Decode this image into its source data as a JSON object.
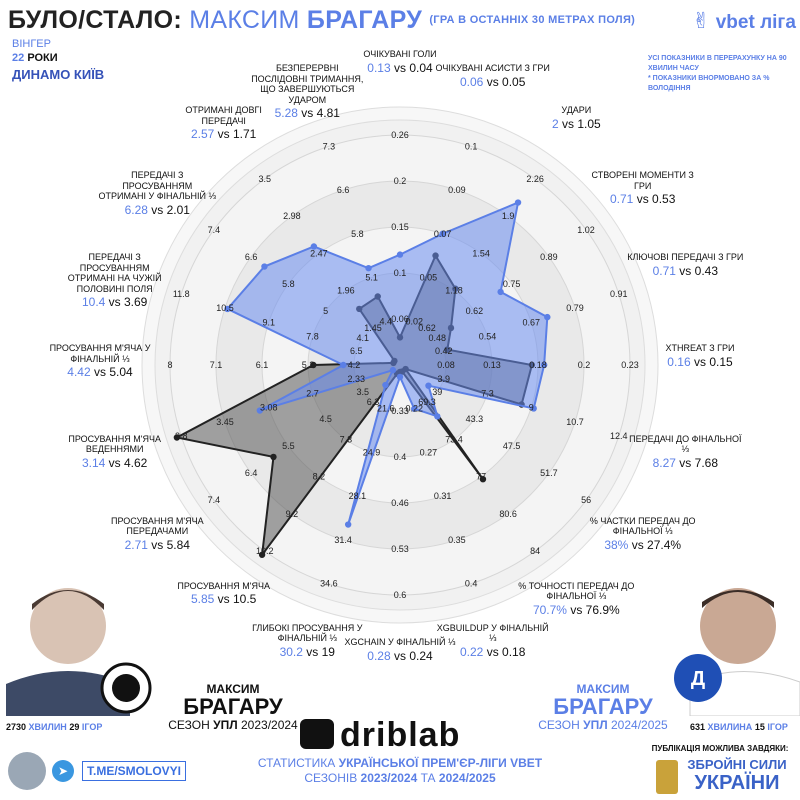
{
  "header": {
    "title_prefix": "БУЛО/СТАЛО:",
    "player_first": "МАКСИМ",
    "player_last": "БРАГАРУ",
    "title_note": "(ГРА В ОСТАННІХ 30 МЕТРАХ ПОЛЯ)",
    "nationality": "ВІНГЕР",
    "age_value": "22",
    "age_unit": "РОКИ",
    "club": "ДИНАМО КИЇВ",
    "league_logo": "vbet ліга",
    "note_line1": "УСІ ПОКАЗНИКИ В ПЕРЕРАХУНКУ НА 90 ХВИЛИН ЧАСУ",
    "note_line2": "* ПОКАЗНИКИ ВНОРМОВАНО ЗА % ВОЛОДІННЯ"
  },
  "chart_data": {
    "type": "radar",
    "series": [
      {
        "name": "СЕЗОН УПЛ 2024/2025",
        "color": "#6b8ef0"
      },
      {
        "name": "СЕЗОН УПЛ 2023/2024",
        "color": "#707070"
      }
    ],
    "metrics": [
      {
        "name": "ОЧІКУВАНІ ГОЛИ",
        "new": "0.13",
        "old": "0.04",
        "new_v": 0.13,
        "old_v": 0.04,
        "ticks": [
          "0.06",
          "0.1",
          "0.15",
          "0.2",
          "0.26"
        ]
      },
      {
        "name": "ОЧІКУВАНІ АСИСТИ З ГРИ",
        "new": "0.06",
        "old": "0.05",
        "new_v": 0.06,
        "old_v": 0.05,
        "ticks": [
          "0.02",
          "0.05",
          "0.07",
          "0.09",
          "0.1"
        ]
      },
      {
        "name": "УДАРИ",
        "new": "2",
        "old": "1.05",
        "new_v": 2,
        "old_v": 1.05,
        "ticks": [
          "0.62",
          "1.18",
          "1.54",
          "1.9",
          "2.26"
        ]
      },
      {
        "name": "СТВОРЕНІ МОМЕНТИ З ГРИ",
        "new": "0.71",
        "old": "0.53",
        "new_v": 0.71,
        "old_v": 0.53,
        "ticks": [
          "0.48",
          "0.62",
          "0.75",
          "0.89",
          "1.02"
        ]
      },
      {
        "name": "КЛЮЧОВІ ПЕРЕДАЧІ З ГРИ",
        "new": "0.71",
        "old": "0.43",
        "new_v": 0.71,
        "old_v": 0.43,
        "ticks": [
          "0.42",
          "0.54",
          "0.67",
          "0.79",
          "0.91"
        ]
      },
      {
        "name": "XTHREAT З ГРИ",
        "new": "0.16",
        "old": "0.15",
        "new_v": 0.16,
        "old_v": 0.15,
        "ticks": [
          "0.08",
          "0.13",
          "0.18",
          "0.2",
          "0.23"
        ]
      },
      {
        "name": "ПЕРЕДАЧІ ДО ФІНАЛЬНОЇ ⅓",
        "new": "8.27",
        "old": "7.68",
        "new_v": 8.27,
        "old_v": 7.68,
        "ticks": [
          "3.9",
          "7.3",
          "9",
          "10.7",
          "12.4"
        ]
      },
      {
        "name": "% ЧАСТКИ ПЕРЕДАЧ ДО ФІНАЛЬНОЇ ⅓",
        "new": "38%",
        "old": "27.4%",
        "new_v": 38,
        "old_v": 27.4,
        "ticks": [
          "39",
          "43.3",
          "47.5",
          "51.7",
          "56"
        ]
      },
      {
        "name": "% ТОЧНОСТІ ПЕРЕДАЧ ДО ФІНАЛЬНОЇ ⅓",
        "new": "70.7%",
        "old": "76.9%",
        "new_v": 70.7,
        "old_v": 76.9,
        "ticks": [
          "69.3",
          "73.4",
          "77",
          "80.6",
          "84"
        ]
      },
      {
        "name": "XGBUILDUP У ФІНАЛЬНІЙ ⅓",
        "new": "0.22",
        "old": "0.18",
        "new_v": 0.22,
        "old_v": 0.18,
        "ticks": [
          "0.22",
          "0.27",
          "0.31",
          "0.35",
          "0.4"
        ]
      },
      {
        "name": "XGCHAIN У ФІНАЛЬНІЙ ⅓",
        "new": "0.28",
        "old": "0.24",
        "new_v": 0.28,
        "old_v": 0.24,
        "ticks": [
          "0.33",
          "0.4",
          "0.46",
          "0.53",
          "0.6"
        ]
      },
      {
        "name": "ГЛИБОКІ ПРОСУВАННЯ У ФІНАЛЬНІЙ ⅓",
        "new": "30.2",
        "old": "19",
        "new_v": 30.2,
        "old_v": 19,
        "ticks": [
          "21.6",
          "24.9",
          "28.1",
          "31.4",
          "34.6"
        ]
      },
      {
        "name": "ПРОСУВАННЯ М'ЯЧА",
        "new": "5.85",
        "old": "10.5",
        "new_v": 5.85,
        "old_v": 10.5,
        "ticks": [
          "6.3",
          "7.3",
          "8.2",
          "9.2",
          "10.2"
        ]
      },
      {
        "name": "ПРОСУВАННЯ М'ЯЧА ПЕРЕДАЧАМИ",
        "new": "2.71",
        "old": "5.84",
        "new_v": 2.71,
        "old_v": 5.84,
        "ticks": [
          "3.5",
          "4.5",
          "5.5",
          "6.4",
          "7.4"
        ]
      },
      {
        "name": "ПРОСУВАННЯ М'ЯЧА ВЕДЕННЯМИ",
        "new": "3.14",
        "old": "4.62",
        "new_v": 3.14,
        "old_v": 4.62,
        "ticks": [
          "2.33",
          "2.7",
          "3.08",
          "3.45",
          "3.8"
        ]
      },
      {
        "name": "ПРОСУВАННЯ М'ЯЧА У ФІНАЛЬНІЙ ⅓",
        "new": "4.42",
        "old": "5.04",
        "new_v": 4.42,
        "old_v": 5.04,
        "ticks": [
          "4.2",
          "5.2",
          "6.1",
          "7.1",
          "8"
        ]
      },
      {
        "name": "ПЕРЕДАЧІ З ПРОСУВАННЯМ ОТРИМАНІ НА ЧУЖІЙ ПОЛОВИНІ ПОЛЯ",
        "new": "10.4",
        "old": "3.69",
        "new_v": 10.4,
        "old_v": 3.69,
        "ticks": [
          "6.5",
          "7.8",
          "9.1",
          "10.5",
          "11.8"
        ]
      },
      {
        "name": "ПЕРЕДАЧІ З ПРОСУВАННЯМ ОТРИМАНІ У ФІНАЛЬНІЙ ⅓",
        "new": "6.28",
        "old": "2.01",
        "new_v": 6.28,
        "old_v": 2.01,
        "ticks": [
          "4.1",
          "5",
          "5.8",
          "6.6",
          "7.4"
        ]
      },
      {
        "name": "ОТРИМАНІ ДОВГІ ПЕРЕДАЧІ",
        "new": "2.57",
        "old": "1.71",
        "new_v": 2.57,
        "old_v": 1.71,
        "ticks": [
          "1.45",
          "1.96",
          "2.47",
          "2.98",
          "3.5"
        ]
      },
      {
        "name": "БЕЗПЕРЕРВНІ ПОСЛІДОВНІ ТРИМАННЯ, ЩО ЗАВЕРШУЮТЬСЯ УДАРОМ",
        "new": "5.28",
        "old": "4.81",
        "new_v": 5.28,
        "old_v": 4.81,
        "ticks": [
          "4.4",
          "5.1",
          "5.8",
          "6.6",
          "7.3"
        ]
      }
    ],
    "vs_word": "vs",
    "grid": true
  },
  "player_old": {
    "first": "МАКСИМ",
    "last": "БРАГАРУ",
    "season_prefix": "СЕЗОН",
    "season_league": "УПЛ",
    "season_years": "2023/2024",
    "minutes_value": "2730",
    "minutes_word": "ХВИЛИН",
    "games_value": "29",
    "games_word": "ІГОР"
  },
  "player_new": {
    "first": "МАКСИМ",
    "last": "БРАГАРУ",
    "season_prefix": "СЕЗОН",
    "season_league": "УПЛ",
    "season_years": "2024/2025",
    "minutes_value": "631",
    "minutes_word": "ХВИЛИНА",
    "games_value": "15",
    "games_word": "ІГОР"
  },
  "footer": {
    "brand": "driblab",
    "telegram": "T.ME/SMOLOVYI",
    "stats_line1_a": "СТАТИСТИКА",
    "stats_line1_b": "УКРАЇНСЬКОЇ ПРЕМ'ЄР-ЛІГИ VBET",
    "stats_line2_a": "СЕЗОНІВ",
    "stats_line2_b": "2023/2024",
    "stats_line2_c": "ТА",
    "stats_line2_d": "2024/2025",
    "support_text": "ПУБЛІКАЦІЯ МОЖЛИВА ЗАВДЯКИ:",
    "zsu_line1": "ЗБРОЙНІ СИЛИ",
    "zsu_line2": "УКРАЇНИ"
  }
}
